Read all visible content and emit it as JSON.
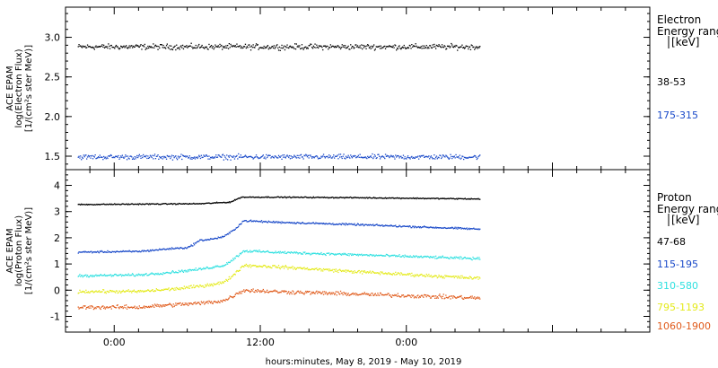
{
  "x_axis": {
    "title": "hours:minutes, May  8, 2019 - May 10, 2019",
    "ticks": [
      "0:00",
      "12:00",
      "0:00"
    ]
  },
  "chart_data": [
    {
      "type": "scatter",
      "panel": "electron",
      "ylabel": [
        "ACE EPAM",
        "log(Electron Flux)",
        "[1/(cm²s ster MeV)]"
      ],
      "ylim": [
        1.33,
        3.38
      ],
      "y_ticks": [
        "1.5",
        "2.0",
        "2.5",
        "3.0"
      ],
      "legend": {
        "title_lines": [
          "Electron",
          "Energy ranges",
          "[keV]"
        ],
        "entries": [
          "38-53",
          "175-315"
        ]
      },
      "x_range_hours": [
        -4,
        44
      ],
      "data_range_hours": [
        -3,
        30
      ],
      "series": [
        {
          "label": "38-53",
          "color": "#000000",
          "profile": [
            [
              -3,
              2.88
            ],
            [
              30,
              2.88
            ]
          ],
          "jitter": 0.05
        },
        {
          "label": "175-315",
          "color": "#1a4ac9",
          "profile": [
            [
              -3,
              1.49
            ],
            [
              30,
              1.49
            ]
          ],
          "jitter": 0.045
        }
      ]
    },
    {
      "type": "scatter",
      "panel": "proton",
      "ylabel": [
        "ACE EPAM",
        "log(Proton Flux)",
        "[1/(cm²s ster MeV)]"
      ],
      "ylim": [
        -1.6,
        4.6
      ],
      "y_ticks": [
        "-1",
        "0",
        "1",
        "2",
        "3",
        "4"
      ],
      "legend": {
        "title_lines": [
          "Proton",
          "Energy ranges",
          "[keV]"
        ],
        "entries": [
          "47-68",
          "115-195",
          "310-580",
          "795-1193",
          "1060-1900"
        ]
      },
      "x_range_hours": [
        -4,
        44
      ],
      "data_range_hours": [
        -3,
        30
      ],
      "series": [
        {
          "label": "47-68",
          "color": "#000000",
          "jitter": 0.03,
          "profile": [
            [
              -3,
              3.27
            ],
            [
              7,
              3.3
            ],
            [
              9.5,
              3.36
            ],
            [
              10.4,
              3.55
            ],
            [
              13,
              3.55
            ],
            [
              20,
              3.53
            ],
            [
              30,
              3.48
            ]
          ]
        },
        {
          "label": "115-195",
          "color": "#1a4ac9",
          "jitter": 0.05,
          "profile": [
            [
              -3,
              1.45
            ],
            [
              2,
              1.48
            ],
            [
              5,
              1.6
            ],
            [
              6,
              1.62
            ],
            [
              7,
              1.9
            ],
            [
              8,
              1.95
            ],
            [
              9,
              2.05
            ],
            [
              9.8,
              2.3
            ],
            [
              10.6,
              2.65
            ],
            [
              13,
              2.6
            ],
            [
              20,
              2.5
            ],
            [
              30,
              2.33
            ]
          ]
        },
        {
          "label": "310-580",
          "color": "#2fe0e0",
          "jitter": 0.07,
          "profile": [
            [
              -3,
              0.55
            ],
            [
              2,
              0.58
            ],
            [
              5,
              0.7
            ],
            [
              7,
              0.8
            ],
            [
              9,
              0.95
            ],
            [
              9.8,
              1.2
            ],
            [
              10.6,
              1.5
            ],
            [
              13,
              1.45
            ],
            [
              20,
              1.35
            ],
            [
              30,
              1.2
            ]
          ]
        },
        {
          "label": "795-1193",
          "color": "#e4ea1b",
          "jitter": 0.09,
          "profile": [
            [
              -3,
              -0.05
            ],
            [
              2,
              -0.05
            ],
            [
              5,
              0.05
            ],
            [
              7,
              0.15
            ],
            [
              9,
              0.3
            ],
            [
              9.8,
              0.6
            ],
            [
              10.6,
              0.95
            ],
            [
              13,
              0.9
            ],
            [
              20,
              0.7
            ],
            [
              30,
              0.45
            ]
          ]
        },
        {
          "label": "1060-1900",
          "color": "#e05a1a",
          "jitter": 0.11,
          "profile": [
            [
              -3,
              -0.65
            ],
            [
              2,
              -0.65
            ],
            [
              5,
              -0.55
            ],
            [
              7,
              -0.5
            ],
            [
              9,
              -0.4
            ],
            [
              9.8,
              -0.2
            ],
            [
              10.6,
              0.0
            ],
            [
              13,
              -0.05
            ],
            [
              20,
              -0.15
            ],
            [
              30,
              -0.3
            ]
          ]
        }
      ]
    }
  ]
}
